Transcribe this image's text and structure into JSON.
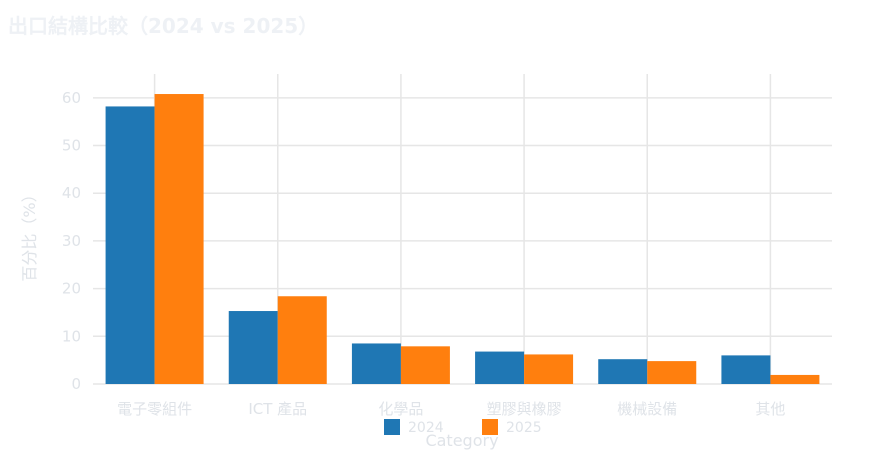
{
  "chart_data": {
    "type": "bar",
    "title": "出口結構比較（2024 vs 2025）",
    "xlabel": "Category",
    "ylabel": "百分比（%）",
    "categories": [
      "電子零組件",
      "ICT 產品",
      "化學品",
      "塑膠與橡膠",
      "機械設備",
      "其他"
    ],
    "series": [
      {
        "name": "2024",
        "values": [
          58.2,
          15.3,
          8.5,
          6.8,
          5.2,
          6.0
        ],
        "color": "#1f77b4"
      },
      {
        "name": "2025",
        "values": [
          60.8,
          18.4,
          7.9,
          6.2,
          4.8,
          1.9
        ],
        "color": "#ff7f0e"
      }
    ],
    "ylim": [
      0,
      65
    ],
    "yticks": [
      0,
      10,
      20,
      30,
      40,
      50,
      60
    ],
    "grid": true,
    "legend_position": "bottom-center"
  }
}
